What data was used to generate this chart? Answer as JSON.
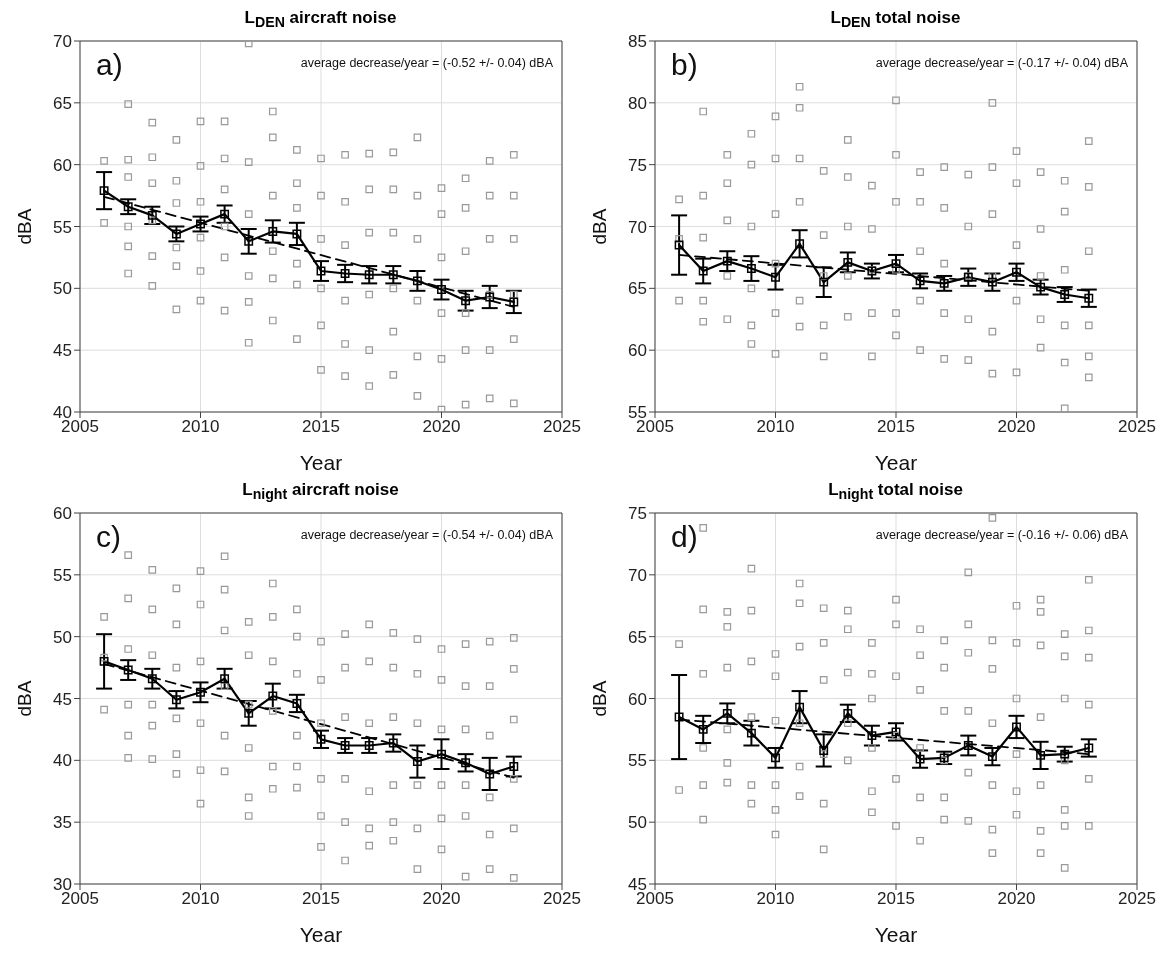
{
  "chart_data": [
    {
      "type": "scatter",
      "title": "L$_{DEN}$ aircraft noise",
      "xlabel": "Year",
      "ylabel": "dBA",
      "xlim": [
        2005,
        2025
      ],
      "xticks": [
        2005,
        2010,
        2015,
        2020,
        2025
      ],
      "ylim": [
        40,
        70
      ],
      "yticks": [
        40,
        45,
        50,
        55,
        60,
        65,
        70
      ],
      "grid": true,
      "annotations": [
        "a)",
        "average decrease/year = (-0.52 +/- 0.04) dBA"
      ],
      "series": [
        {
          "type": "scatter",
          "color": "#999999",
          "marker": "square",
          "x": [
            2006,
            2006,
            2007,
            2007,
            2007,
            2007,
            2007,
            2007,
            2008,
            2008,
            2008,
            2008,
            2008,
            2008,
            2009,
            2009,
            2009,
            2009,
            2009,
            2009,
            2010,
            2010,
            2010,
            2010,
            2010,
            2010,
            2011,
            2011,
            2011,
            2011,
            2011,
            2011,
            2012,
            2012,
            2012,
            2012,
            2012,
            2012,
            2013,
            2013,
            2013,
            2013,
            2013,
            2013,
            2014,
            2014,
            2014,
            2014,
            2014,
            2014,
            2015,
            2015,
            2015,
            2015,
            2015,
            2015,
            2016,
            2016,
            2016,
            2016,
            2016,
            2016,
            2017,
            2017,
            2017,
            2017,
            2017,
            2017,
            2018,
            2018,
            2018,
            2018,
            2018,
            2018,
            2019,
            2019,
            2019,
            2019,
            2019,
            2019,
            2020,
            2020,
            2020,
            2020,
            2020,
            2020,
            2021,
            2021,
            2021,
            2021,
            2021,
            2021,
            2022,
            2022,
            2022,
            2022,
            2022,
            2022,
            2023,
            2023,
            2023,
            2023,
            2023,
            2023
          ],
          "values": [
            60.3,
            55.3,
            64.9,
            60.4,
            59.0,
            55.0,
            53.4,
            51.2,
            63.4,
            60.6,
            58.5,
            55.5,
            52.6,
            50.2,
            62.0,
            58.7,
            56.9,
            53.3,
            51.8,
            48.3,
            63.5,
            59.9,
            57.0,
            54.1,
            51.4,
            49.0,
            63.5,
            60.5,
            58.0,
            55.0,
            52.5,
            48.2,
            69.8,
            60.2,
            56.0,
            51.0,
            48.9,
            45.6,
            64.3,
            62.2,
            57.5,
            53.0,
            50.8,
            47.4,
            61.2,
            58.5,
            56.5,
            52.0,
            50.3,
            45.9,
            60.5,
            57.5,
            54.0,
            50.0,
            47.0,
            43.4,
            60.8,
            57.0,
            53.5,
            49.0,
            45.5,
            42.9,
            60.9,
            58.0,
            54.5,
            49.5,
            45.0,
            42.1,
            61.0,
            58.0,
            54.5,
            50.0,
            46.5,
            43.0,
            62.2,
            57.5,
            54.0,
            49.0,
            44.5,
            41.3,
            58.1,
            56.0,
            52.5,
            48.0,
            44.3,
            40.2,
            58.9,
            56.5,
            53.0,
            48.0,
            45.0,
            40.6,
            60.3,
            57.5,
            54.0,
            49.5,
            45.0,
            41.1,
            60.8,
            57.5,
            54.0,
            49.5,
            45.9,
            40.7
          ]
        },
        {
          "type": "line",
          "color": "#000000",
          "marker": "square",
          "line_style": "solid",
          "x": [
            2006,
            2007,
            2008,
            2009,
            2010,
            2011,
            2012,
            2013,
            2014,
            2015,
            2016,
            2017,
            2018,
            2019,
            2020,
            2021,
            2022,
            2023
          ],
          "values": [
            57.9,
            56.6,
            55.9,
            54.4,
            55.2,
            56.0,
            53.8,
            54.6,
            54.4,
            51.4,
            51.2,
            51.1,
            51.1,
            50.6,
            49.9,
            49.0,
            49.3,
            48.9
          ],
          "errors": [
            1.5,
            0.6,
            0.7,
            0.6,
            0.6,
            0.7,
            1.0,
            0.9,
            0.9,
            0.8,
            0.7,
            0.7,
            0.7,
            0.8,
            0.8,
            0.8,
            0.9,
            0.9
          ]
        },
        {
          "type": "line",
          "color": "#000000",
          "marker": "none",
          "line_style": "dashed",
          "x": [
            2006,
            2023
          ],
          "values": [
            57.4,
            48.5
          ]
        }
      ]
    },
    {
      "type": "scatter",
      "title": "L$_{DEN}$ total noise",
      "xlabel": "Year",
      "ylabel": "dBA",
      "xlim": [
        2005,
        2025
      ],
      "xticks": [
        2005,
        2010,
        2015,
        2020,
        2025
      ],
      "ylim": [
        55,
        85
      ],
      "yticks": [
        55,
        60,
        65,
        70,
        75,
        80,
        85
      ],
      "grid": true,
      "annotations": [
        "b)",
        "average decrease/year = (-0.17 +/- 0.04) dBA"
      ],
      "series": [
        {
          "type": "scatter",
          "color": "#999999",
          "marker": "square",
          "x": [
            2006,
            2006,
            2006,
            2007,
            2007,
            2007,
            2007,
            2007,
            2008,
            2008,
            2008,
            2008,
            2008,
            2009,
            2009,
            2009,
            2009,
            2009,
            2009,
            2010,
            2010,
            2010,
            2010,
            2010,
            2010,
            2011,
            2011,
            2011,
            2011,
            2011,
            2011,
            2012,
            2012,
            2012,
            2012,
            2012,
            2013,
            2013,
            2013,
            2013,
            2013,
            2014,
            2014,
            2014,
            2014,
            2014,
            2015,
            2015,
            2015,
            2015,
            2015,
            2015,
            2016,
            2016,
            2016,
            2016,
            2016,
            2017,
            2017,
            2017,
            2017,
            2017,
            2018,
            2018,
            2018,
            2018,
            2018,
            2019,
            2019,
            2019,
            2019,
            2019,
            2019,
            2020,
            2020,
            2020,
            2020,
            2020,
            2021,
            2021,
            2021,
            2021,
            2021,
            2022,
            2022,
            2022,
            2022,
            2022,
            2022,
            2023,
            2023,
            2023,
            2023,
            2023,
            2023
          ],
          "values": [
            72.2,
            69.0,
            64.0,
            79.3,
            72.5,
            69.1,
            64.0,
            62.3,
            75.8,
            73.5,
            70.5,
            66.0,
            62.5,
            77.5,
            75.0,
            70.0,
            65.0,
            62.0,
            60.5,
            78.9,
            75.5,
            71.0,
            67.0,
            63.0,
            59.7,
            81.3,
            79.6,
            75.5,
            72.0,
            64.0,
            61.9,
            74.5,
            69.3,
            66.0,
            62.0,
            59.5,
            77.0,
            74.0,
            70.0,
            66.0,
            62.7,
            73.3,
            69.8,
            66.5,
            63.0,
            59.5,
            80.2,
            75.8,
            72.0,
            66.5,
            63.0,
            61.2,
            74.4,
            72.0,
            68.0,
            64.0,
            60.0,
            74.8,
            71.5,
            67.0,
            63.0,
            59.3,
            74.2,
            70.0,
            66.0,
            62.5,
            59.2,
            80.0,
            74.8,
            71.0,
            66.0,
            61.5,
            58.1,
            76.1,
            73.5,
            68.5,
            64.0,
            58.2,
            74.4,
            69.8,
            66.0,
            62.5,
            60.2,
            73.7,
            71.2,
            66.5,
            62.0,
            59.0,
            55.3,
            76.9,
            73.2,
            68.0,
            62.0,
            59.5,
            57.8
          ]
        },
        {
          "type": "line",
          "color": "#000000",
          "marker": "square",
          "line_style": "solid",
          "x": [
            2006,
            2007,
            2008,
            2009,
            2010,
            2011,
            2012,
            2013,
            2014,
            2015,
            2016,
            2017,
            2018,
            2019,
            2020,
            2021,
            2022,
            2023
          ],
          "values": [
            68.5,
            66.4,
            67.2,
            66.6,
            65.9,
            68.6,
            65.5,
            67.1,
            66.4,
            67.0,
            65.6,
            65.4,
            65.9,
            65.5,
            66.3,
            65.1,
            64.5,
            64.2
          ],
          "errors": [
            2.4,
            1.0,
            0.8,
            1.0,
            1.0,
            1.1,
            1.2,
            0.8,
            0.6,
            0.7,
            0.6,
            0.6,
            0.7,
            0.7,
            0.7,
            0.6,
            0.6,
            0.7
          ]
        },
        {
          "type": "line",
          "color": "#000000",
          "marker": "none",
          "line_style": "dashed",
          "x": [
            2006,
            2023
          ],
          "values": [
            67.7,
            64.8
          ]
        }
      ]
    },
    {
      "type": "scatter",
      "title": "L$_{night}$ aircraft noise",
      "xlabel": "Year",
      "ylabel": "dBA",
      "xlim": [
        2005,
        2025
      ],
      "xticks": [
        2005,
        2010,
        2015,
        2020,
        2025
      ],
      "ylim": [
        30,
        60
      ],
      "yticks": [
        30,
        35,
        40,
        45,
        50,
        55,
        60
      ],
      "grid": true,
      "annotations": [
        "c)",
        "average decrease/year = (-0.54 +/- 0.04) dBA"
      ],
      "series": [
        {
          "type": "scatter",
          "color": "#999999",
          "marker": "square",
          "x": [
            2006,
            2006,
            2006,
            2007,
            2007,
            2007,
            2007,
            2007,
            2007,
            2008,
            2008,
            2008,
            2008,
            2008,
            2008,
            2009,
            2009,
            2009,
            2009,
            2009,
            2009,
            2010,
            2010,
            2010,
            2010,
            2010,
            2010,
            2011,
            2011,
            2011,
            2011,
            2011,
            2011,
            2012,
            2012,
            2012,
            2012,
            2012,
            2012,
            2013,
            2013,
            2013,
            2013,
            2013,
            2013,
            2014,
            2014,
            2014,
            2014,
            2014,
            2014,
            2015,
            2015,
            2015,
            2015,
            2015,
            2015,
            2016,
            2016,
            2016,
            2016,
            2016,
            2016,
            2017,
            2017,
            2017,
            2017,
            2017,
            2017,
            2018,
            2018,
            2018,
            2018,
            2018,
            2018,
            2019,
            2019,
            2019,
            2019,
            2019,
            2019,
            2020,
            2020,
            2020,
            2020,
            2020,
            2020,
            2021,
            2021,
            2021,
            2021,
            2021,
            2021,
            2022,
            2022,
            2022,
            2022,
            2022,
            2022,
            2023,
            2023,
            2023,
            2023,
            2023,
            2023
          ],
          "values": [
            51.6,
            48.3,
            44.1,
            56.6,
            53.1,
            49.0,
            44.5,
            42.0,
            40.2,
            55.4,
            52.2,
            48.5,
            44.5,
            42.8,
            40.1,
            53.9,
            51.0,
            47.5,
            43.4,
            40.5,
            38.9,
            55.3,
            52.6,
            48.0,
            43.0,
            39.2,
            36.5,
            56.5,
            53.8,
            50.5,
            46.0,
            42.0,
            39.1,
            51.2,
            48.5,
            44.5,
            41.0,
            37.0,
            35.5,
            54.3,
            51.6,
            48.0,
            44.0,
            39.5,
            37.7,
            52.2,
            50.0,
            47.0,
            42.0,
            39.5,
            37.8,
            49.6,
            46.5,
            43.0,
            38.5,
            35.5,
            33.0,
            50.2,
            47.5,
            43.5,
            38.5,
            35.0,
            31.9,
            51.0,
            48.0,
            43.0,
            37.5,
            34.5,
            33.1,
            50.3,
            47.5,
            43.5,
            38.0,
            35.0,
            33.5,
            49.8,
            47.0,
            43.0,
            38.0,
            34.5,
            31.2,
            49.0,
            46.5,
            42.5,
            38.0,
            35.3,
            32.8,
            49.4,
            46.0,
            42.5,
            38.0,
            35.5,
            30.6,
            49.6,
            46.0,
            42.0,
            37.0,
            34.0,
            31.2,
            49.9,
            47.4,
            43.3,
            38.5,
            34.5,
            30.5
          ]
        },
        {
          "type": "line",
          "color": "#000000",
          "marker": "square",
          "line_style": "solid",
          "x": [
            2006,
            2007,
            2008,
            2009,
            2010,
            2011,
            2012,
            2013,
            2014,
            2015,
            2016,
            2017,
            2018,
            2019,
            2020,
            2021,
            2022,
            2023
          ],
          "values": [
            48.0,
            47.3,
            46.6,
            44.9,
            45.5,
            46.6,
            43.8,
            45.2,
            44.6,
            41.7,
            41.2,
            41.2,
            41.4,
            39.9,
            40.5,
            39.8,
            38.9,
            39.5
          ],
          "errors": [
            2.2,
            0.8,
            0.8,
            0.7,
            0.8,
            0.8,
            1.0,
            1.0,
            0.7,
            0.7,
            0.6,
            0.6,
            0.7,
            1.3,
            1.2,
            0.7,
            1.3,
            0.8
          ]
        },
        {
          "type": "line",
          "color": "#000000",
          "marker": "none",
          "line_style": "dashed",
          "x": [
            2006,
            2023
          ],
          "values": [
            47.8,
            38.6
          ]
        }
      ]
    },
    {
      "type": "scatter",
      "title": "L$_{night}$ total noise",
      "xlabel": "Year",
      "ylabel": "dBA",
      "xlim": [
        2005,
        2025
      ],
      "xticks": [
        2005,
        2010,
        2015,
        2020,
        2025
      ],
      "ylim": [
        45,
        75
      ],
      "yticks": [
        45,
        50,
        55,
        60,
        65,
        70,
        75
      ],
      "grid": true,
      "annotations": [
        "d)",
        "average decrease/year = (-0.16 +/- 0.06) dBA"
      ],
      "series": [
        {
          "type": "scatter",
          "color": "#999999",
          "marker": "square",
          "x": [
            2006,
            2006,
            2007,
            2007,
            2007,
            2007,
            2007,
            2007,
            2008,
            2008,
            2008,
            2008,
            2008,
            2008,
            2009,
            2009,
            2009,
            2009,
            2009,
            2009,
            2010,
            2010,
            2010,
            2010,
            2010,
            2010,
            2011,
            2011,
            2011,
            2011,
            2011,
            2011,
            2012,
            2012,
            2012,
            2012,
            2012,
            2012,
            2013,
            2013,
            2013,
            2013,
            2013,
            2014,
            2014,
            2014,
            2014,
            2014,
            2014,
            2015,
            2015,
            2015,
            2015,
            2015,
            2015,
            2016,
            2016,
            2016,
            2016,
            2016,
            2016,
            2017,
            2017,
            2017,
            2017,
            2017,
            2017,
            2018,
            2018,
            2018,
            2018,
            2018,
            2018,
            2019,
            2019,
            2019,
            2019,
            2019,
            2019,
            2019,
            2020,
            2020,
            2020,
            2020,
            2020,
            2020,
            2021,
            2021,
            2021,
            2021,
            2021,
            2021,
            2021,
            2022,
            2022,
            2022,
            2022,
            2022,
            2022,
            2022,
            2023,
            2023,
            2023,
            2023,
            2023,
            2023
          ],
          "values": [
            64.4,
            52.6,
            73.8,
            67.2,
            62.0,
            56.0,
            53.0,
            50.2,
            67.0,
            65.8,
            62.5,
            57.5,
            54.8,
            53.2,
            70.5,
            67.1,
            63.0,
            58.5,
            53.0,
            51.5,
            63.6,
            61.8,
            58.2,
            53.0,
            51.0,
            49.0,
            69.3,
            67.7,
            64.2,
            58.0,
            54.5,
            52.1,
            67.3,
            64.5,
            61.5,
            55.5,
            51.5,
            47.8,
            67.1,
            65.6,
            62.1,
            58.0,
            55.0,
            64.5,
            62.0,
            60.0,
            56.0,
            52.5,
            50.8,
            68.0,
            66.0,
            61.8,
            57.0,
            53.5,
            49.7,
            65.6,
            63.5,
            60.7,
            56.0,
            52.0,
            48.5,
            64.7,
            62.5,
            59.0,
            55.0,
            52.0,
            50.2,
            70.2,
            66.0,
            63.7,
            59.0,
            54.0,
            50.1,
            74.6,
            64.7,
            62.4,
            58.0,
            53.0,
            49.4,
            47.5,
            67.5,
            64.5,
            60.0,
            55.5,
            52.5,
            50.6,
            68.0,
            67.0,
            64.3,
            58.5,
            53.0,
            49.3,
            47.5,
            65.2,
            63.4,
            60.0,
            55.0,
            51.0,
            49.7,
            46.3,
            69.6,
            65.5,
            63.3,
            59.5,
            53.5,
            49.7
          ]
        },
        {
          "type": "line",
          "color": "#000000",
          "marker": "square",
          "line_style": "solid",
          "x": [
            2006,
            2007,
            2008,
            2009,
            2010,
            2011,
            2012,
            2013,
            2014,
            2015,
            2016,
            2017,
            2018,
            2019,
            2020,
            2021,
            2022,
            2023
          ],
          "values": [
            58.5,
            57.5,
            58.8,
            57.2,
            55.2,
            59.3,
            55.8,
            58.8,
            57.0,
            57.3,
            55.1,
            55.2,
            56.2,
            55.3,
            57.7,
            55.4,
            55.5,
            56.0
          ],
          "errors": [
            3.4,
            1.1,
            0.8,
            1.0,
            0.8,
            1.3,
            1.3,
            0.7,
            0.8,
            0.7,
            0.7,
            0.5,
            0.8,
            0.7,
            0.9,
            1.1,
            0.6,
            0.7
          ]
        },
        {
          "type": "line",
          "color": "#000000",
          "marker": "none",
          "line_style": "dashed",
          "x": [
            2006,
            2023
          ],
          "values": [
            58.3,
            55.5
          ]
        }
      ]
    }
  ]
}
